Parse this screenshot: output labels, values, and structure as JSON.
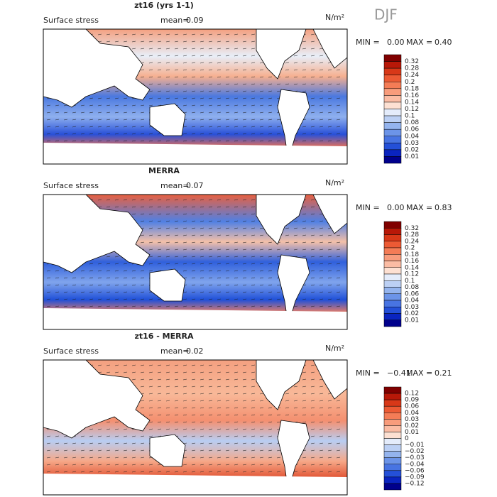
{
  "season": "DJF",
  "panels": [
    {
      "title": "zt16 (yrs 1-1)",
      "subtitle": "Surface stress",
      "mean_label": "mean=",
      "mean": "0.09",
      "units": "N/m²",
      "min_label": "MIN =",
      "min": "0.00",
      "max_label": "MAX =",
      "max": "0.40",
      "levels": [
        "0.32",
        "0.28",
        "0.24",
        "0.2",
        "0.18",
        "0.16",
        "0.14",
        "0.12",
        "0.1",
        "0.08",
        "0.06",
        "0.04",
        "0.03",
        "0.02",
        "0.01"
      ]
    },
    {
      "title": "MERRA",
      "subtitle": "Surface stress",
      "mean_label": "mean=",
      "mean": "0.07",
      "units": "N/m²",
      "min_label": "MIN =",
      "min": "0.00",
      "max_label": "MAX =",
      "max": "0.83",
      "levels": [
        "0.32",
        "0.28",
        "0.24",
        "0.2",
        "0.18",
        "0.16",
        "0.14",
        "0.12",
        "0.1",
        "0.08",
        "0.06",
        "0.04",
        "0.03",
        "0.02",
        "0.01"
      ]
    },
    {
      "title": "zt16 - MERRA",
      "subtitle": "Surface stress",
      "mean_label": "mean=",
      "mean": "0.02",
      "units": "N/m²",
      "min_label": "MIN =",
      "min": "−0.41",
      "max_label": "MAX =",
      "max": "0.21",
      "levels": [
        "0.12",
        "0.09",
        "0.06",
        "0.04",
        "0.03",
        "0.02",
        "0.01",
        "0",
        "−0.01",
        "−0.02",
        "−0.03",
        "−0.04",
        "−0.06",
        "−0.09",
        "−0.12"
      ]
    }
  ],
  "colors": [
    "#800000",
    "#b81808",
    "#d83818",
    "#ec5a34",
    "#f47c56",
    "#f89c7c",
    "#fbbca4",
    "#fde0d2",
    "#e4ecfb",
    "#bcd0f4",
    "#94b4ee",
    "#6c94e8",
    "#4874e2",
    "#2450d8",
    "#0a24c0",
    "#00008c"
  ]
}
